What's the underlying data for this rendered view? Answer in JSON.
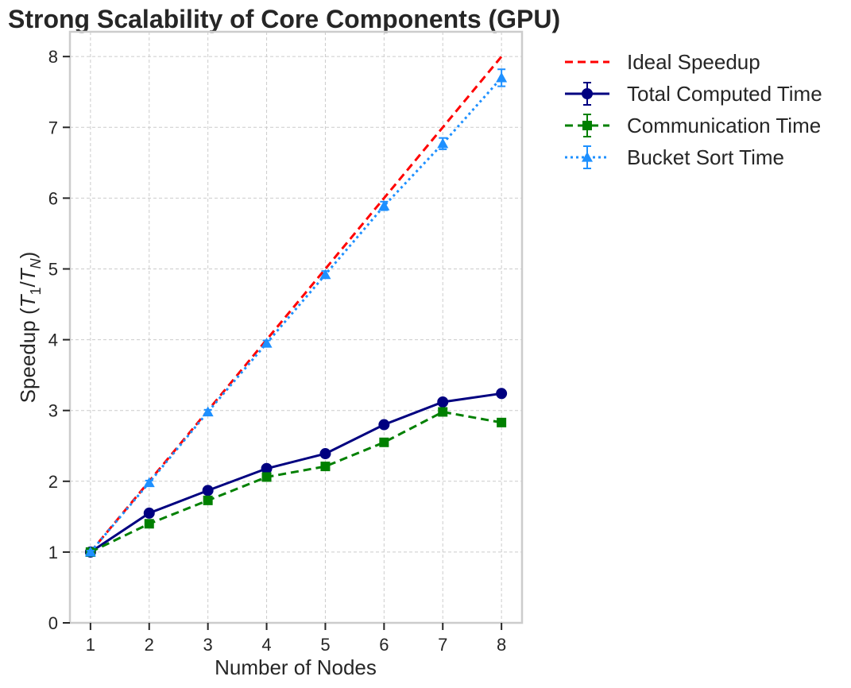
{
  "chart_data": {
    "type": "line",
    "title": "Strong Scalability of Core Components (GPU)",
    "xlabel": "Number of Nodes",
    "ylabel": "Speedup (T1/TN)",
    "ylabel_parts": {
      "prefix": "Speedup (",
      "t": "T",
      "sub1": "1",
      "slash": "/",
      "t2": "T",
      "subN": "N",
      "suffix": ")"
    },
    "x": [
      1,
      2,
      3,
      4,
      5,
      6,
      7,
      8
    ],
    "xticks": [
      "1",
      "2",
      "3",
      "4",
      "5",
      "6",
      "7",
      "8"
    ],
    "yticks": [
      "0",
      "1",
      "2",
      "3",
      "4",
      "5",
      "6",
      "7",
      "8"
    ],
    "xlim": [
      0.65,
      8.35
    ],
    "ylim": [
      0,
      8.35
    ],
    "grid": true,
    "legend_position": "outside top-right",
    "series": [
      {
        "name": "Ideal Speedup",
        "values": [
          1,
          2,
          3,
          4,
          5,
          6,
          7,
          8
        ],
        "errors": null,
        "color": "#ff0000",
        "style": "dashed",
        "marker": "none"
      },
      {
        "name": "Total Computed Time",
        "values": [
          1.0,
          1.55,
          1.87,
          2.18,
          2.39,
          2.8,
          3.12,
          3.24
        ],
        "errors": [
          0.02,
          0.02,
          0.02,
          0.02,
          0.02,
          0.02,
          0.03,
          0.03
        ],
        "color": "#000080",
        "style": "solid",
        "marker": "circle"
      },
      {
        "name": "Communication Time",
        "values": [
          1.0,
          1.4,
          1.73,
          2.06,
          2.21,
          2.55,
          2.98,
          2.83
        ],
        "errors": [
          0.02,
          0.02,
          0.02,
          0.02,
          0.02,
          0.02,
          0.03,
          0.03
        ],
        "color": "#008000",
        "style": "dashed",
        "marker": "square"
      },
      {
        "name": "Bucket Sort Time",
        "values": [
          1.0,
          1.98,
          2.98,
          3.95,
          4.92,
          5.89,
          6.77,
          7.7
        ],
        "errors": [
          0.02,
          0.03,
          0.03,
          0.04,
          0.05,
          0.06,
          0.08,
          0.12
        ],
        "color": "#1e90ff",
        "style": "dotted",
        "marker": "triangle"
      }
    ]
  }
}
